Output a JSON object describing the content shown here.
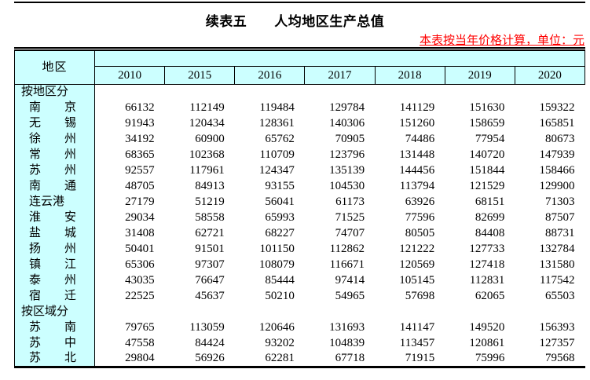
{
  "page": {
    "title": "续表五　　人均地区生产总值",
    "note": "本表按当年价格计算，单位：元"
  },
  "colors": {
    "header_bg": "#CCFFFF",
    "note_color": "#FF0000",
    "border": "#000000"
  },
  "table": {
    "corner_header": "地区",
    "years": [
      "2010",
      "2015",
      "2016",
      "2017",
      "2018",
      "2019",
      "2020"
    ],
    "sections": [
      {
        "header": "按地区分",
        "rows": [
          {
            "name": "南　　京",
            "values": [
              66132,
              112149,
              119484,
              129784,
              141129,
              151630,
              159322
            ]
          },
          {
            "name": "无　　锡",
            "values": [
              91943,
              120434,
              128361,
              140306,
              151260,
              158659,
              165851
            ]
          },
          {
            "name": "徐　　州",
            "values": [
              34192,
              60900,
              65762,
              70905,
              74486,
              77954,
              80673
            ]
          },
          {
            "name": "常　　州",
            "values": [
              68365,
              102368,
              110709,
              123796,
              131448,
              140720,
              147939
            ]
          },
          {
            "name": "苏　　州",
            "values": [
              92557,
              117961,
              124347,
              135139,
              144456,
              151844,
              158466
            ]
          },
          {
            "name": "南　　通",
            "values": [
              48705,
              84913,
              93155,
              104530,
              113794,
              121529,
              129900
            ]
          },
          {
            "name": "连云港",
            "values": [
              27179,
              51219,
              56041,
              61173,
              63926,
              68151,
              71303
            ]
          },
          {
            "name": "淮　　安",
            "values": [
              29034,
              58558,
              65993,
              71525,
              77596,
              82699,
              87507
            ]
          },
          {
            "name": "盐　　城",
            "values": [
              31408,
              62721,
              68227,
              74707,
              80505,
              84408,
              88731
            ]
          },
          {
            "name": "扬　　州",
            "values": [
              50401,
              91501,
              101150,
              112862,
              121222,
              127733,
              132784
            ]
          },
          {
            "name": "镇　　江",
            "values": [
              65306,
              97307,
              108079,
              116671,
              120569,
              127418,
              131580
            ]
          },
          {
            "name": "泰　　州",
            "values": [
              43035,
              76647,
              85444,
              97414,
              105145,
              112831,
              117542
            ]
          },
          {
            "name": "宿　　迁",
            "values": [
              22525,
              45637,
              50210,
              54965,
              57698,
              62065,
              65503
            ]
          }
        ]
      },
      {
        "header": "按区域分",
        "rows": [
          {
            "name": "苏　　南",
            "values": [
              79765,
              113059,
              120646,
              131693,
              141147,
              149520,
              156393
            ]
          },
          {
            "name": "苏　　中",
            "values": [
              47558,
              84424,
              93202,
              104839,
              113457,
              120861,
              127357
            ]
          },
          {
            "name": "苏　　北",
            "values": [
              29804,
              56926,
              62281,
              67718,
              71915,
              75996,
              79568
            ]
          }
        ]
      }
    ]
  }
}
